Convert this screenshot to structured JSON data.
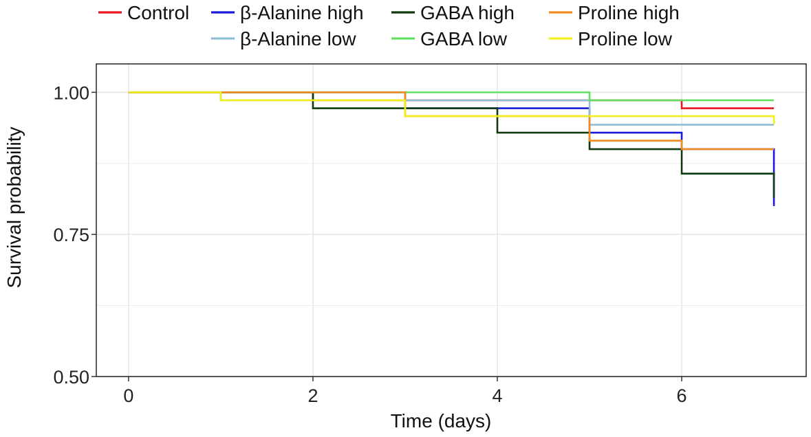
{
  "chart_data": {
    "type": "line",
    "subtype": "kaplan-meier step",
    "xlabel": "Time (days)",
    "ylabel": "Survival probability",
    "xlim": [
      -0.35,
      7.35
    ],
    "ylim": [
      0.5,
      1.05
    ],
    "xticks": [
      0,
      2,
      4,
      6
    ],
    "xtick_labels": [
      "0",
      "2",
      "4",
      "6"
    ],
    "yticks": [
      0.5,
      0.75,
      1.0
    ],
    "ytick_labels": [
      "0.50",
      "0.75",
      "1.00"
    ],
    "minor_gridlines_y": [
      0.625,
      0.875
    ],
    "grid": true,
    "legend_position": "top",
    "series": [
      {
        "name": "Control",
        "color": "#e8141b",
        "x": [
          0,
          2,
          5,
          6,
          7
        ],
        "y": [
          1.0,
          0.986,
          0.986,
          0.972,
          0.972
        ]
      },
      {
        "name": "β-Alanine high",
        "color": "#1a1adb",
        "x": [
          0,
          3,
          5,
          6,
          7
        ],
        "y": [
          1.0,
          0.972,
          0.929,
          0.9,
          0.8
        ]
      },
      {
        "name": "β-Alanine low",
        "color": "#8fbfd6",
        "x": [
          0,
          1,
          5,
          7
        ],
        "y": [
          1.0,
          0.986,
          0.943,
          0.943
        ]
      },
      {
        "name": "GABA high",
        "color": "#0e3a0e",
        "x": [
          0,
          2,
          4,
          5,
          6,
          7
        ],
        "y": [
          1.0,
          0.972,
          0.929,
          0.9,
          0.857,
          0.814
        ]
      },
      {
        "name": "GABA low",
        "color": "#63e063",
        "x": [
          0,
          5,
          7
        ],
        "y": [
          1.0,
          0.986,
          0.986
        ]
      },
      {
        "name": "Proline high",
        "color": "#f28c1e",
        "x": [
          0,
          3,
          5,
          6,
          7
        ],
        "y": [
          1.0,
          0.958,
          0.915,
          0.9,
          0.9
        ]
      },
      {
        "name": "Proline low",
        "color": "#f2ef1a",
        "x": [
          0,
          1,
          3,
          7
        ],
        "y": [
          1.0,
          0.986,
          0.958,
          0.944
        ]
      }
    ]
  }
}
